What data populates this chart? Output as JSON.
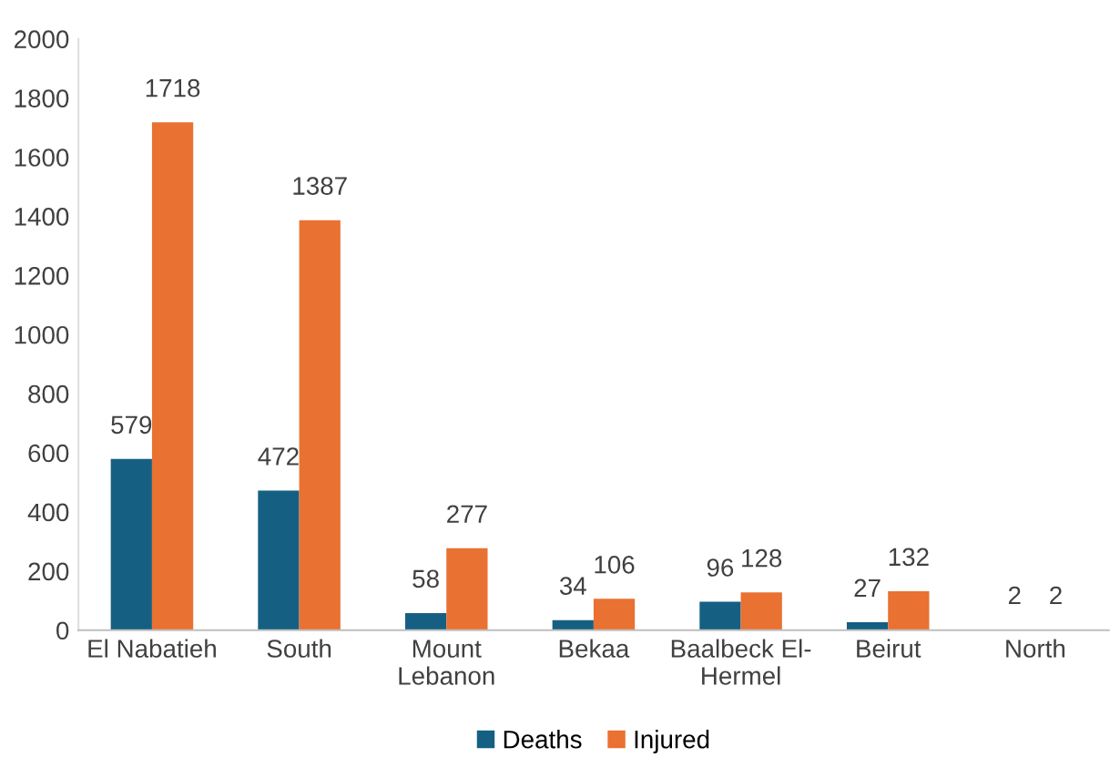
{
  "chart_data": {
    "type": "bar",
    "categories": [
      "El Nabatieh",
      "South",
      "Mount\nLebanon",
      "Bekaa",
      "Baalbeck El-\nHermel",
      "Beirut",
      "North"
    ],
    "series": [
      {
        "name": "Deaths",
        "color": "#156082",
        "values": [
          579,
          472,
          58,
          34,
          96,
          27,
          2
        ]
      },
      {
        "name": "Injured",
        "color": "#e97132",
        "values": [
          1718,
          1387,
          277,
          106,
          128,
          132,
          2
        ]
      }
    ],
    "ylim": [
      0,
      2000
    ],
    "yticks": [
      0,
      200,
      400,
      600,
      800,
      1000,
      1200,
      1400,
      1600,
      1800,
      2000
    ],
    "grid": false,
    "legend": "bottom",
    "data_labels": true
  }
}
